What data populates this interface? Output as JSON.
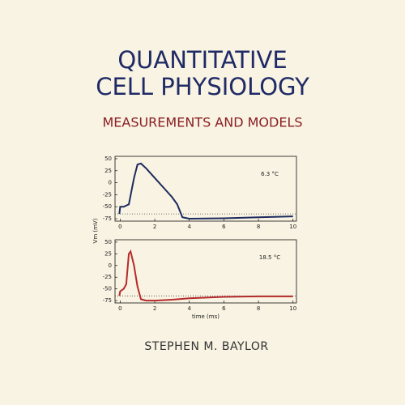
{
  "title_lines": [
    "QUANTITATIVE",
    "CELL PHYSIOLOGY"
  ],
  "subtitle": "MEASUREMENTS AND MODELS",
  "author": "STEPHEN M. BAYLOR",
  "chart_data": [
    {
      "type": "line",
      "annotation": "6.3 °C",
      "ylabel": "Vm (mV)",
      "color": "#1c2a5e",
      "x": [
        -0.05,
        0,
        0.2,
        0.5,
        0.8,
        1.0,
        1.2,
        1.5,
        2.0,
        2.5,
        3.0,
        3.3,
        3.6,
        4.0,
        6,
        8,
        10
      ],
      "values": [
        -65,
        -50,
        -50,
        -45,
        10,
        38,
        40,
        30,
        10,
        -10,
        -30,
        -45,
        -72,
        -75,
        -74,
        -72,
        -70
      ],
      "reference_line": -65,
      "xlim": [
        -0.3,
        10.2
      ],
      "ylim": [
        -80,
        55
      ],
      "xticks": [
        0,
        2,
        4,
        6,
        8,
        10
      ],
      "yticks": [
        50,
        25,
        0,
        -25,
        -50,
        -75
      ]
    },
    {
      "type": "line",
      "annotation": "18.5 °C",
      "xlabel": "time (ms)",
      "color": "#b52a2a",
      "x": [
        -0.05,
        0,
        0.2,
        0.35,
        0.5,
        0.6,
        0.8,
        1.0,
        1.2,
        1.5,
        2,
        3,
        4,
        6,
        8,
        10
      ],
      "values": [
        -65,
        -55,
        -50,
        -40,
        25,
        30,
        0,
        -45,
        -72,
        -75,
        -75,
        -73,
        -70,
        -67,
        -66,
        -66
      ],
      "reference_line": -65,
      "xlim": [
        -0.3,
        10.2
      ],
      "ylim": [
        -80,
        55
      ],
      "xticks": [
        0,
        2,
        4,
        6,
        8,
        10
      ],
      "yticks": [
        50,
        25,
        0,
        -25,
        -50,
        -75
      ]
    }
  ]
}
